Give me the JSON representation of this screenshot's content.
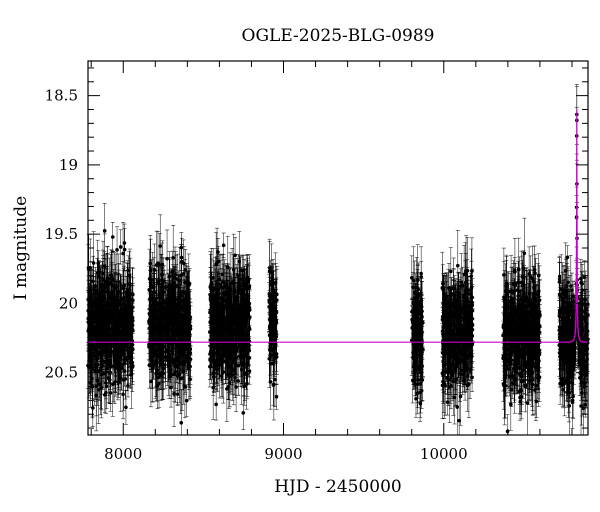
{
  "chart_data": {
    "type": "scatter",
    "title": "OGLE-2025-BLG-0989",
    "xlabel": "HJD - 2450000",
    "ylabel": "I magnitude",
    "xlim": [
      7780,
      10900
    ],
    "ylim": [
      20.95,
      18.25
    ],
    "y_inverted": true,
    "grid": false,
    "legend": "none",
    "x_ticks": [
      {
        "value": 8000,
        "label": "8000"
      },
      {
        "value": 9000,
        "label": "9000"
      },
      {
        "value": 10000,
        "label": "10000"
      }
    ],
    "y_ticks": [
      {
        "value": 18.5,
        "label": "18.5"
      },
      {
        "value": 19.0,
        "label": "19"
      },
      {
        "value": 19.5,
        "label": "19.5"
      },
      {
        "value": 20.0,
        "label": "20"
      },
      {
        "value": 20.5,
        "label": "20.5"
      }
    ],
    "baseline_magnitude": 20.28,
    "seasons": [
      {
        "start": 7780,
        "end": 8060,
        "mean": 20.17,
        "scatter": 0.2
      },
      {
        "start": 8160,
        "end": 8420,
        "mean": 20.16,
        "scatter": 0.2
      },
      {
        "start": 8540,
        "end": 8790,
        "mean": 20.16,
        "scatter": 0.2
      },
      {
        "start": 8910,
        "end": 8960,
        "mean": 20.18,
        "scatter": 0.18
      },
      {
        "start": 9800,
        "end": 9870,
        "mean": 20.22,
        "scatter": 0.2
      },
      {
        "start": 9990,
        "end": 10180,
        "mean": 20.22,
        "scatter": 0.2
      },
      {
        "start": 10370,
        "end": 10600,
        "mean": 20.22,
        "scatter": 0.2
      },
      {
        "start": 10720,
        "end": 10900,
        "mean": 20.22,
        "scatter": 0.2
      }
    ],
    "event": {
      "t0": 10830,
      "peak_magnitude": 18.6,
      "u0": 0.05,
      "tE": 15
    },
    "colors": {
      "points": "#000000",
      "errorbars": "#000000",
      "model": "#cc00cc",
      "axes": "#000000"
    }
  }
}
